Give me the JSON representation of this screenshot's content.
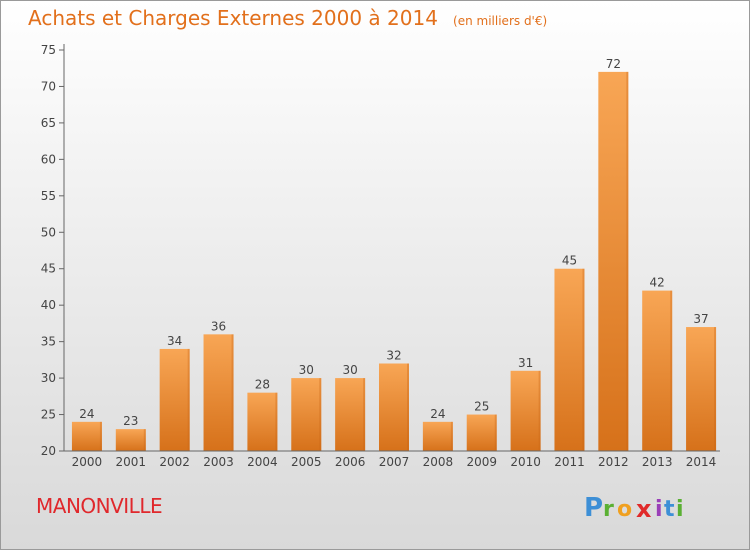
{
  "title": "Achats et Charges Externes 2000 à 2014",
  "subtitle": "(en milliers d'€)",
  "commune": "MANONVILLE",
  "logo_text": "Proxiti",
  "colors": {
    "title": "#e2701c",
    "commune": "#e0282c",
    "bar_light": "#f7a451",
    "bar_dark": "#d8731a",
    "axis": "#555555"
  },
  "chart_data": {
    "type": "bar",
    "title": "Achats et Charges Externes 2000 à 2014",
    "subtitle": "(en milliers d'€)",
    "categories": [
      "2000",
      "2001",
      "2002",
      "2003",
      "2004",
      "2005",
      "2006",
      "2007",
      "2008",
      "2009",
      "2010",
      "2011",
      "2012",
      "2013",
      "2014"
    ],
    "values": [
      24,
      23,
      34,
      36,
      28,
      30,
      30,
      32,
      24,
      25,
      31,
      45,
      72,
      42,
      37
    ],
    "ylim": [
      20,
      75
    ],
    "yticks": [
      20,
      25,
      30,
      35,
      40,
      45,
      50,
      55,
      60,
      65,
      70,
      75
    ],
    "xlabel": "",
    "ylabel": "",
    "grid": false
  }
}
